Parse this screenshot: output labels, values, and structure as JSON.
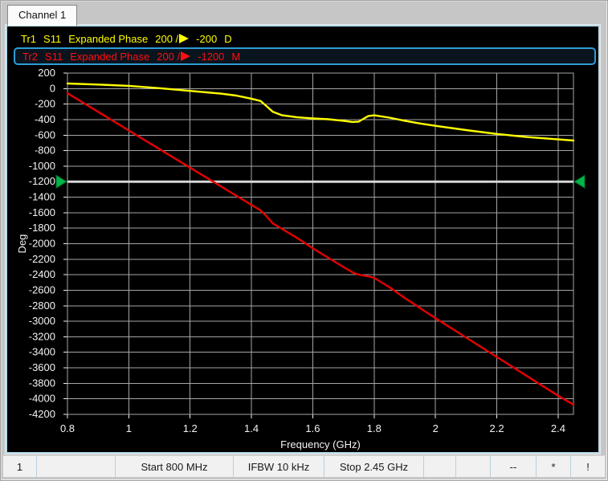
{
  "window": {
    "tab_label": "Channel 1"
  },
  "traces": [
    {
      "name": "Tr1",
      "param": "S11",
      "format": "Expanded Phase",
      "scale": "200 /",
      "ref": "-200",
      "type": "D",
      "color": "#ffff00",
      "active": false
    },
    {
      "name": "Tr2",
      "param": "S11",
      "format": "Expanded Phase",
      "scale": "200 /",
      "ref": "-1200",
      "type": "M",
      "color": "#ff0f0f",
      "active": true
    }
  ],
  "chart_data": {
    "type": "line",
    "xlabel": "Frequency (GHz)",
    "ylabel": "Deg",
    "xlim": [
      0.8,
      2.45
    ],
    "ylim": [
      -4200,
      200
    ],
    "x_ticks": [
      0.8,
      1,
      1.2,
      1.4,
      1.6,
      1.8,
      2,
      2.2,
      2.4
    ],
    "x_tick_labels": [
      "0.8",
      "1",
      "1.2",
      "1.4",
      "1.6",
      "1.8",
      "2",
      "2.2",
      "2.4"
    ],
    "y_tick_step": 200,
    "grid": true,
    "grid_color": "#a6a6a6",
    "tick_text_color": "#f2f2f2",
    "reference_line": {
      "value": -1200,
      "color": "#d6d6d6",
      "marker_color": "#00b44a",
      "marker_edge": "#00682a"
    },
    "series": [
      {
        "name": "Tr1 S11 Expanded Phase",
        "color": "#ffff00",
        "points": [
          [
            0.8,
            65
          ],
          [
            0.9,
            52
          ],
          [
            1.0,
            35
          ],
          [
            1.1,
            5
          ],
          [
            1.2,
            -30
          ],
          [
            1.3,
            -65
          ],
          [
            1.35,
            -90
          ],
          [
            1.4,
            -130
          ],
          [
            1.43,
            -160
          ],
          [
            1.45,
            -230
          ],
          [
            1.47,
            -300
          ],
          [
            1.5,
            -345
          ],
          [
            1.55,
            -370
          ],
          [
            1.6,
            -385
          ],
          [
            1.65,
            -395
          ],
          [
            1.7,
            -415
          ],
          [
            1.73,
            -430
          ],
          [
            1.75,
            -425
          ],
          [
            1.78,
            -355
          ],
          [
            1.8,
            -345
          ],
          [
            1.85,
            -375
          ],
          [
            1.9,
            -415
          ],
          [
            1.95,
            -450
          ],
          [
            2.0,
            -480
          ],
          [
            2.1,
            -535
          ],
          [
            2.2,
            -585
          ],
          [
            2.3,
            -625
          ],
          [
            2.4,
            -655
          ],
          [
            2.45,
            -670
          ]
        ]
      },
      {
        "name": "Tr2 S11 Expanded Phase",
        "color": "#e60000",
        "points": [
          [
            0.8,
            -60
          ],
          [
            0.9,
            -300
          ],
          [
            1.0,
            -540
          ],
          [
            1.1,
            -780
          ],
          [
            1.2,
            -1020
          ],
          [
            1.3,
            -1260
          ],
          [
            1.4,
            -1500
          ],
          [
            1.43,
            -1570
          ],
          [
            1.45,
            -1650
          ],
          [
            1.47,
            -1740
          ],
          [
            1.5,
            -1810
          ],
          [
            1.55,
            -1930
          ],
          [
            1.6,
            -2060
          ],
          [
            1.65,
            -2180
          ],
          [
            1.7,
            -2300
          ],
          [
            1.73,
            -2370
          ],
          [
            1.75,
            -2400
          ],
          [
            1.78,
            -2420
          ],
          [
            1.8,
            -2440
          ],
          [
            1.85,
            -2560
          ],
          [
            1.9,
            -2700
          ],
          [
            1.95,
            -2830
          ],
          [
            2.0,
            -2960
          ],
          [
            2.1,
            -3210
          ],
          [
            2.2,
            -3460
          ],
          [
            2.3,
            -3710
          ],
          [
            2.4,
            -3960
          ],
          [
            2.45,
            -4075
          ]
        ]
      }
    ]
  },
  "status_bar": {
    "cells": [
      "1",
      "",
      "Start 800 MHz",
      "IFBW 10 kHz",
      "Stop 2.45 GHz",
      "",
      "",
      "--",
      "*",
      "!"
    ]
  }
}
